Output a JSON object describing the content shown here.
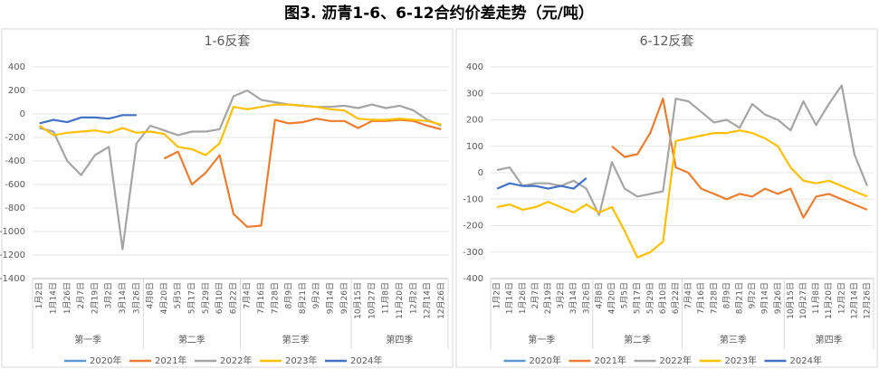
{
  "title": "图3. 沥青1-6、6-12合约价差走势（元/吨）",
  "chart_data": [
    {
      "type": "line",
      "title": "1-6反套",
      "categories": [
        "1月2日",
        "1月14日",
        "1月26日",
        "2月7日",
        "2月19日",
        "3月2日",
        "3月14日",
        "3月26日",
        "4月8日",
        "4月20日",
        "5月5日",
        "5月17日",
        "5月29日",
        "6月10日",
        "6月22日",
        "7月4日",
        "7月16日",
        "7月28日",
        "8月9日",
        "8月21日",
        "9月2日",
        "9月14日",
        "9月26日",
        "10月15日",
        "10月27日",
        "11月8日",
        "11月20日",
        "12月2日",
        "12月14日",
        "12月26日"
      ],
      "groups": [
        {
          "label": "第一季",
          "size": 8
        },
        {
          "label": "第二季",
          "size": 7
        },
        {
          "label": "第三季",
          "size": 8
        },
        {
          "label": "第四季",
          "size": 7
        }
      ],
      "ylim": [
        -1400,
        400
      ],
      "yticks": [
        -1400,
        -1200,
        -1000,
        -800,
        -600,
        -400,
        -200,
        0,
        200,
        400
      ],
      "grid": true,
      "series": [
        {
          "name": "2020年",
          "color": "#5b9bd5",
          "values": [
            null,
            null,
            null,
            null,
            null,
            null,
            null,
            null,
            null,
            null,
            null,
            null,
            null,
            null,
            null,
            null,
            null,
            null,
            null,
            null,
            null,
            null,
            null,
            null,
            null,
            null,
            null,
            null,
            null,
            null
          ]
        },
        {
          "name": "2021年",
          "color": "#ed7d31",
          "values": [
            null,
            null,
            null,
            null,
            null,
            null,
            null,
            null,
            null,
            -380,
            -320,
            -600,
            -500,
            -350,
            -850,
            -960,
            -950,
            -50,
            -80,
            -70,
            -40,
            -60,
            -60,
            -120,
            -60,
            -60,
            -50,
            -60,
            -100,
            -130
          ]
        },
        {
          "name": "2022年",
          "color": "#a5a5a5",
          "values": [
            -120,
            -150,
            -400,
            -520,
            -350,
            -280,
            -1150,
            -250,
            -100,
            -140,
            -180,
            -150,
            -150,
            -130,
            150,
            200,
            120,
            100,
            80,
            70,
            60,
            60,
            70,
            50,
            80,
            50,
            70,
            30,
            -50,
            -100
          ]
        },
        {
          "name": "2023年",
          "color": "#ffc000",
          "values": [
            -100,
            -180,
            -160,
            -150,
            -140,
            -160,
            -120,
            -160,
            -150,
            -170,
            -280,
            -300,
            -350,
            -250,
            60,
            40,
            60,
            80,
            80,
            70,
            60,
            40,
            30,
            -40,
            -50,
            -50,
            -40,
            -50,
            -60,
            -90
          ]
        },
        {
          "name": "2024年",
          "color": "#4472c4",
          "values": [
            -80,
            -50,
            -70,
            -30,
            -30,
            -40,
            -10,
            -10,
            null,
            null,
            null,
            null,
            null,
            null,
            null,
            null,
            null,
            null,
            null,
            null,
            null,
            null,
            null,
            null,
            null,
            null,
            null,
            null,
            null,
            null
          ]
        }
      ]
    },
    {
      "type": "line",
      "title": "6-12反套",
      "categories": [
        "1月2日",
        "1月14日",
        "1月26日",
        "2月7日",
        "2月19日",
        "3月2日",
        "3月14日",
        "3月26日",
        "4月8日",
        "4月20日",
        "5月5日",
        "5月17日",
        "5月29日",
        "6月10日",
        "6月22日",
        "7月4日",
        "7月16日",
        "7月28日",
        "8月9日",
        "8月21日",
        "9月2日",
        "9月14日",
        "9月26日",
        "10月15日",
        "10月27日",
        "11月8日",
        "11月20日",
        "12月2日",
        "12月14日",
        "12月26日"
      ],
      "groups": [
        {
          "label": "第一季",
          "size": 8
        },
        {
          "label": "第二季",
          "size": 7
        },
        {
          "label": "第三季",
          "size": 8
        },
        {
          "label": "第四季",
          "size": 7
        }
      ],
      "ylim": [
        -400,
        400
      ],
      "yticks": [
        -400,
        -300,
        -200,
        -100,
        0,
        100,
        200,
        300,
        400
      ],
      "grid": true,
      "series": [
        {
          "name": "2020年",
          "color": "#5b9bd5",
          "values": [
            null,
            null,
            null,
            null,
            null,
            null,
            null,
            null,
            null,
            null,
            null,
            null,
            null,
            null,
            null,
            null,
            null,
            null,
            null,
            null,
            null,
            null,
            null,
            null,
            null,
            null,
            null,
            null,
            null,
            null
          ]
        },
        {
          "name": "2021年",
          "color": "#ed7d31",
          "values": [
            null,
            null,
            null,
            null,
            null,
            null,
            null,
            null,
            null,
            100,
            60,
            70,
            150,
            280,
            20,
            0,
            -60,
            -80,
            -100,
            -80,
            -90,
            -60,
            -80,
            -60,
            -170,
            -90,
            -80,
            -100,
            -120,
            -140
          ]
        },
        {
          "name": "2022年",
          "color": "#a5a5a5",
          "values": [
            10,
            20,
            -50,
            -40,
            -40,
            -50,
            -30,
            -60,
            -160,
            40,
            -60,
            -90,
            -80,
            -70,
            280,
            270,
            230,
            190,
            200,
            170,
            260,
            220,
            200,
            160,
            270,
            180,
            260,
            330,
            70,
            -50
          ]
        },
        {
          "name": "2023年",
          "color": "#ffc000",
          "values": [
            -130,
            -120,
            -140,
            -130,
            -110,
            -130,
            -150,
            -120,
            -150,
            -130,
            -220,
            -320,
            -300,
            -260,
            120,
            130,
            140,
            150,
            150,
            160,
            150,
            130,
            100,
            20,
            -30,
            -40,
            -30,
            -50,
            -70,
            -90
          ]
        },
        {
          "name": "2024年",
          "color": "#4472c4",
          "values": [
            -60,
            -40,
            -50,
            -50,
            -60,
            -50,
            -60,
            -20,
            null,
            null,
            null,
            null,
            null,
            null,
            null,
            null,
            null,
            null,
            null,
            null,
            null,
            null,
            null,
            null,
            null,
            null,
            null,
            null,
            null,
            null
          ]
        }
      ]
    }
  ]
}
